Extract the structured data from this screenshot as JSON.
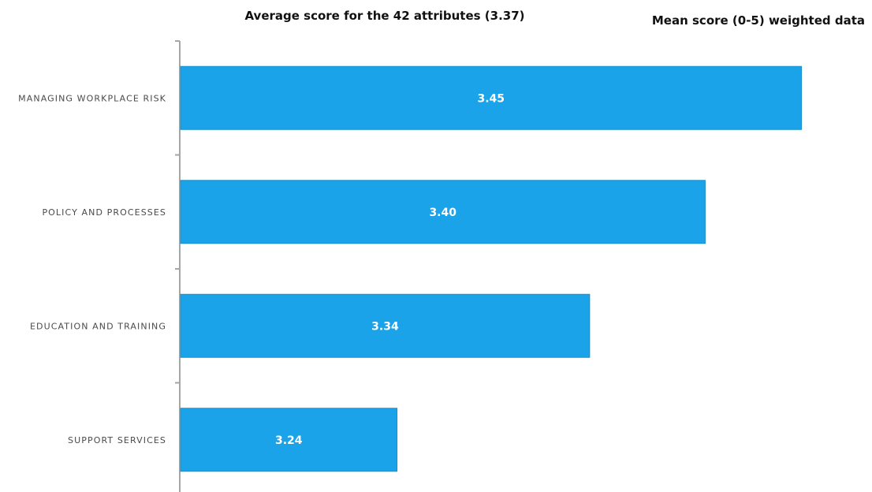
{
  "chart_data": {
    "type": "bar",
    "orientation": "horizontal",
    "title": "Average score for the 42 attributes (3.37)",
    "subtitle": "Mean score (0-5) weighted data",
    "categories": [
      "MANAGING WORKPLACE RISK",
      "POLICY AND PROCESSES",
      "EDUCATION AND TRAINING",
      "SUPPORT SERVICES"
    ],
    "values": [
      3.45,
      3.4,
      3.34,
      3.24
    ],
    "data_labels": [
      "3.45",
      "3.40",
      "3.34",
      "3.24"
    ],
    "xlim": [
      3.11,
      3.46
    ],
    "grid": false,
    "legend": "none",
    "bar_color": "#1aa3e8"
  }
}
